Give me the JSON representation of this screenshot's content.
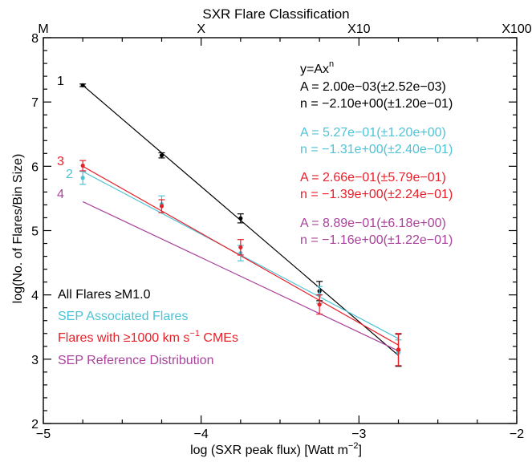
{
  "chart_data": {
    "type": "line",
    "title": "",
    "xlabel": "log (SXR peak flux) [Watt m",
    "xlabel_sup": "−2",
    "xlabel_close": "]",
    "ylabel": "log(No. of Flares/Bin Size)",
    "xlim": [
      -5,
      -2
    ],
    "ylim": [
      2,
      8
    ],
    "x_ticks": [
      {
        "value": -5,
        "label": "−5"
      },
      {
        "value": -4,
        "label": "−4"
      },
      {
        "value": -3,
        "label": "−3"
      },
      {
        "value": -2,
        "label": "−2"
      }
    ],
    "y_ticks": [
      {
        "value": 2,
        "label": "2"
      },
      {
        "value": 3,
        "label": "3"
      },
      {
        "value": 4,
        "label": "4"
      },
      {
        "value": 5,
        "label": "5"
      },
      {
        "value": 6,
        "label": "6"
      },
      {
        "value": 7,
        "label": "7"
      },
      {
        "value": 8,
        "label": "8"
      }
    ],
    "top_axis": {
      "label": "SXR Flare Classification",
      "ticks": [
        {
          "value": -5,
          "label": "M"
        },
        {
          "value": -4,
          "label": "X"
        },
        {
          "value": -3,
          "label": "X10"
        },
        {
          "value": -2,
          "label": "X100"
        }
      ]
    },
    "formula": {
      "base": "y=Ax",
      "exp": "n"
    },
    "series": [
      {
        "name": "All Flares ≥M1.0",
        "id_label": "1",
        "color": "#000000",
        "points": [
          {
            "x": -4.75,
            "y": 7.26,
            "err": 0.02
          },
          {
            "x": -4.25,
            "y": 6.17,
            "err": 0.04
          },
          {
            "x": -3.75,
            "y": 5.19,
            "err": 0.07
          },
          {
            "x": -3.25,
            "y": 4.06,
            "err": 0.15
          },
          {
            "x": -2.75,
            "y": 3.14,
            "err": 0.25
          }
        ],
        "fit": {
          "x": [
            -4.75,
            -2.75
          ],
          "y": [
            7.26,
            3.06
          ]
        },
        "fit_text": [
          "A = 2.00e−03(±2.52e−03)",
          "n = −2.10e+00(±1.20e−01)"
        ]
      },
      {
        "name": "SEP Associated Flares",
        "id_label": "2",
        "color": "#4fc3d6",
        "points": [
          {
            "x": -4.75,
            "y": 5.82,
            "err": 0.1
          },
          {
            "x": -4.25,
            "y": 5.41,
            "err": 0.13
          },
          {
            "x": -3.75,
            "y": 4.65,
            "err": 0.12
          },
          {
            "x": -3.25,
            "y": 4.0,
            "err": 0.13
          },
          {
            "x": -2.75,
            "y": 3.1,
            "err": 0.2
          }
        ],
        "fit": {
          "x": [
            -4.75,
            -2.75
          ],
          "y": [
            5.92,
            3.32
          ]
        },
        "fit_text": [
          "A = 5.27e−01(±1.20e+00)",
          "n = −1.31e+00(±2.40e−01)"
        ]
      },
      {
        "name": "Flares with ≥1000 km s",
        "name_sup": "−1",
        "name_tail": " CMEs",
        "id_label": "3",
        "color": "#e8202a",
        "points": [
          {
            "x": -4.75,
            "y": 6.01,
            "err": 0.08
          },
          {
            "x": -4.25,
            "y": 5.38,
            "err": 0.1
          },
          {
            "x": -3.75,
            "y": 4.74,
            "err": 0.12
          },
          {
            "x": -3.25,
            "y": 3.85,
            "err": 0.15
          },
          {
            "x": -2.75,
            "y": 3.15,
            "err": 0.25
          }
        ],
        "fit": {
          "x": [
            -4.75,
            -2.75
          ],
          "y": [
            6.0,
            3.22
          ]
        },
        "fit_text": [
          "A = 2.66e−01(±5.79e−01)",
          "n = −1.39e+00(±2.24e−01)"
        ]
      },
      {
        "name": "SEP Reference Distribution",
        "id_label": "4",
        "color": "#a9439b",
        "points": [],
        "fit": {
          "x": [
            -4.75,
            -2.75
          ],
          "y": [
            5.45,
            3.13
          ]
        },
        "fit_text": [
          "A = 8.89e−01(±6.18e+00)",
          "n = −1.16e+00(±1.22e−01)"
        ]
      }
    ]
  }
}
